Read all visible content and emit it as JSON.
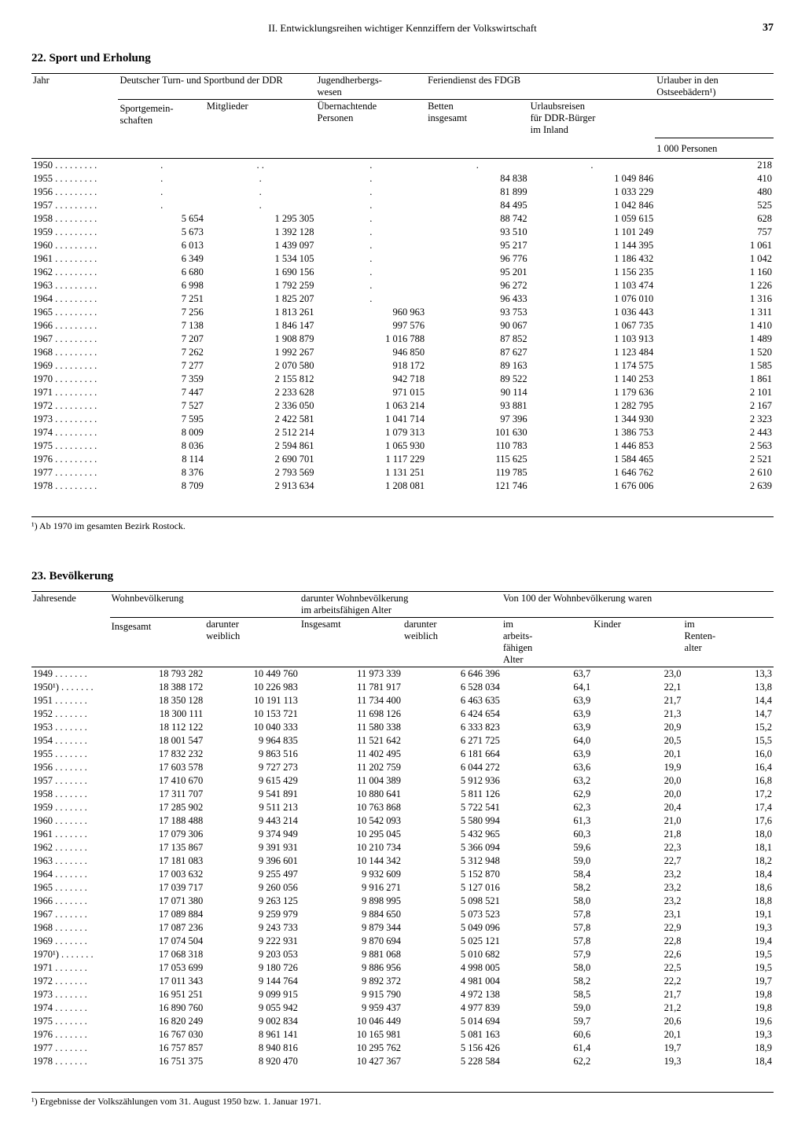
{
  "page": {
    "chapter": "II. Entwicklungsreihen wichtiger Kennziffern der Volkswirtschaft",
    "number": "37"
  },
  "table22": {
    "title": "22. Sport und Erholung",
    "columns": {
      "year": "Jahr",
      "dtsb": "Deutscher Turn- und Sportbund der DDR",
      "dtsb_sub1": "Sportgemein-\nschaften",
      "dtsb_sub2": "Mitglieder",
      "jh": "Jugendherbergs-\nwesen",
      "jh_sub": "Übernachtende\nPersonen",
      "fdgb": "Feriendienst des FDGB",
      "fdgb_sub1": "Betten\ninsgesamt",
      "fdgb_sub2": "Urlaubsreisen\nfür DDR-Bürger\nim Inland",
      "ostsee": "Urlauber in den\nOstseebädern¹)",
      "unit": "1 000 Personen"
    },
    "rows": [
      {
        "year": "1950",
        "sg": ".",
        "mg": ". .",
        "up": ".",
        "bet": ".",
        "url": ".",
        "ost": "218"
      },
      {
        "year": "1955",
        "sg": ".",
        "mg": ".",
        "up": ".",
        "bet": "84 838",
        "url": "1 049 846",
        "ost": "410"
      },
      {
        "year": "1956",
        "sg": ".",
        "mg": ".",
        "up": ".",
        "bet": "81 899",
        "url": "1 033 229",
        "ost": "480"
      },
      {
        "year": "1957",
        "sg": ".",
        "mg": ".",
        "up": ".",
        "bet": "84 495",
        "url": "1 042 846",
        "ost": "525"
      },
      {
        "year": "1958",
        "sg": "5 654",
        "mg": "1 295 305",
        "up": ".",
        "bet": "88 742",
        "url": "1 059 615",
        "ost": "628"
      },
      {
        "year": "1959",
        "sg": "5 673",
        "mg": "1 392 128",
        "up": ".",
        "bet": "93 510",
        "url": "1 101 249",
        "ost": "757"
      },
      {
        "year": "1960",
        "sg": "6 013",
        "mg": "1 439 097",
        "up": ".",
        "bet": "95 217",
        "url": "1 144 395",
        "ost": "1 061"
      },
      {
        "year": "1961",
        "sg": "6 349",
        "mg": "1 534 105",
        "up": ".",
        "bet": "96 776",
        "url": "1 186 432",
        "ost": "1 042"
      },
      {
        "year": "1962",
        "sg": "6 680",
        "mg": "1 690 156",
        "up": ".",
        "bet": "95 201",
        "url": "1 156 235",
        "ost": "1 160"
      },
      {
        "year": "1963",
        "sg": "6 998",
        "mg": "1 792 259",
        "up": ".",
        "bet": "96 272",
        "url": "1 103 474",
        "ost": "1 226"
      },
      {
        "year": "1964",
        "sg": "7 251",
        "mg": "1 825 207",
        "up": ".",
        "bet": "96 433",
        "url": "1 076 010",
        "ost": "1 316"
      },
      {
        "year": "1965",
        "sg": "7 256",
        "mg": "1 813 261",
        "up": "960 963",
        "bet": "93 753",
        "url": "1 036 443",
        "ost": "1 311"
      },
      {
        "year": "1966",
        "sg": "7 138",
        "mg": "1 846 147",
        "up": "997 576",
        "bet": "90 067",
        "url": "1 067 735",
        "ost": "1 410"
      },
      {
        "year": "1967",
        "sg": "7 207",
        "mg": "1 908 879",
        "up": "1 016 788",
        "bet": "87 852",
        "url": "1 103 913",
        "ost": "1 489"
      },
      {
        "year": "1968",
        "sg": "7 262",
        "mg": "1 992 267",
        "up": "946 850",
        "bet": "87 627",
        "url": "1 123 484",
        "ost": "1 520"
      },
      {
        "year": "1969",
        "sg": "7 277",
        "mg": "2 070 580",
        "up": "918 172",
        "bet": "89 163",
        "url": "1 174 575",
        "ost": "1 585"
      },
      {
        "year": "1970",
        "sg": "7 359",
        "mg": "2 155 812",
        "up": "942 718",
        "bet": "89 522",
        "url": "1 140 253",
        "ost": "1 861"
      },
      {
        "year": "1971",
        "sg": "7 447",
        "mg": "2 233 628",
        "up": "971 015",
        "bet": "90 114",
        "url": "1 179 636",
        "ost": "2 101"
      },
      {
        "year": "1972",
        "sg": "7 527",
        "mg": "2 336 050",
        "up": "1 063 214",
        "bet": "93 881",
        "url": "1 282 795",
        "ost": "2 167"
      },
      {
        "year": "1973",
        "sg": "7 595",
        "mg": "2 422 581",
        "up": "1 041 714",
        "bet": "97 396",
        "url": "1 344 930",
        "ost": "2 323"
      },
      {
        "year": "1974",
        "sg": "8 009",
        "mg": "2 512 214",
        "up": "1 079 313",
        "bet": "101 630",
        "url": "1 386 753",
        "ost": "2 443"
      },
      {
        "year": "1975",
        "sg": "8 036",
        "mg": "2 594 861",
        "up": "1 065 930",
        "bet": "110 783",
        "url": "1 446 853",
        "ost": "2 563"
      },
      {
        "year": "1976",
        "sg": "8 114",
        "mg": "2 690 701",
        "up": "1 117 229",
        "bet": "115 625",
        "url": "1 584 465",
        "ost": "2 521"
      },
      {
        "year": "1977",
        "sg": "8 376",
        "mg": "2 793 569",
        "up": "1 131 251",
        "bet": "119 785",
        "url": "1 646 762",
        "ost": "2 610"
      },
      {
        "year": "1978",
        "sg": "8 709",
        "mg": "2 913 634",
        "up": "1 208 081",
        "bet": "121 746",
        "url": "1 676 006",
        "ost": "2 639"
      }
    ],
    "footnote": "¹) Ab 1970 im gesamten Bezirk Rostock."
  },
  "table23": {
    "title": "23. Bevölkerung",
    "columns": {
      "year": "Jahresende",
      "wb": "Wohnbevölkerung",
      "wb_sub1": "Insgesamt",
      "wb_sub2": "darunter\nweiblich",
      "af": "darunter Wohnbevölkerung\nim arbeitsfähigen Alter",
      "af_sub1": "Insgesamt",
      "af_sub2": "darunter\nweiblich",
      "pct": "Von 100 der Wohnbevölkerung waren",
      "pct_sub1": "im\narbeits-\nfähigen\nAlter",
      "pct_sub2": "Kinder",
      "pct_sub3": "im\nRenten-\nalter"
    },
    "rows": [
      {
        "year": "1949",
        "tot": "18 793 282",
        "w": "10 449 760",
        "aft": "11 973 339",
        "afw": "6 646 396",
        "p1": "63,7",
        "p2": "23,0",
        "p3": "13,3"
      },
      {
        "year": "1950¹)",
        "tot": "18 388 172",
        "w": "10 226 983",
        "aft": "11 781 917",
        "afw": "6 528 034",
        "p1": "64,1",
        "p2": "22,1",
        "p3": "13,8"
      },
      {
        "year": "1951",
        "tot": "18 350 128",
        "w": "10 191 113",
        "aft": "11 734 400",
        "afw": "6 463 635",
        "p1": "63,9",
        "p2": "21,7",
        "p3": "14,4"
      },
      {
        "year": "1952",
        "tot": "18 300 111",
        "w": "10 153 721",
        "aft": "11 698 126",
        "afw": "6 424 654",
        "p1": "63,9",
        "p2": "21,3",
        "p3": "14,7"
      },
      {
        "year": "1953",
        "tot": "18 112 122",
        "w": "10 040 333",
        "aft": "11 580 338",
        "afw": "6 333 823",
        "p1": "63,9",
        "p2": "20,9",
        "p3": "15,2"
      },
      {
        "year": "1954",
        "tot": "18 001 547",
        "w": "9 964 835",
        "aft": "11 521 642",
        "afw": "6 271 725",
        "p1": "64,0",
        "p2": "20,5",
        "p3": "15,5"
      },
      {
        "year": "1955",
        "tot": "17 832 232",
        "w": "9 863 516",
        "aft": "11 402 495",
        "afw": "6 181 664",
        "p1": "63,9",
        "p2": "20,1",
        "p3": "16,0"
      },
      {
        "year": "1956",
        "tot": "17 603 578",
        "w": "9 727 273",
        "aft": "11 202 759",
        "afw": "6 044 272",
        "p1": "63,6",
        "p2": "19,9",
        "p3": "16,4"
      },
      {
        "year": "1957",
        "tot": "17 410 670",
        "w": "9 615 429",
        "aft": "11 004 389",
        "afw": "5 912 936",
        "p1": "63,2",
        "p2": "20,0",
        "p3": "16,8"
      },
      {
        "year": "1958",
        "tot": "17 311 707",
        "w": "9 541 891",
        "aft": "10 880 641",
        "afw": "5 811 126",
        "p1": "62,9",
        "p2": "20,0",
        "p3": "17,2"
      },
      {
        "year": "1959",
        "tot": "17 285 902",
        "w": "9 511 213",
        "aft": "10 763 868",
        "afw": "5 722 541",
        "p1": "62,3",
        "p2": "20,4",
        "p3": "17,4"
      },
      {
        "year": "1960",
        "tot": "17 188 488",
        "w": "9 443 214",
        "aft": "10 542 093",
        "afw": "5 580 994",
        "p1": "61,3",
        "p2": "21,0",
        "p3": "17,6"
      },
      {
        "year": "1961",
        "tot": "17 079 306",
        "w": "9 374 949",
        "aft": "10 295 045",
        "afw": "5 432 965",
        "p1": "60,3",
        "p2": "21,8",
        "p3": "18,0"
      },
      {
        "year": "1962",
        "tot": "17 135 867",
        "w": "9 391 931",
        "aft": "10 210 734",
        "afw": "5 366 094",
        "p1": "59,6",
        "p2": "22,3",
        "p3": "18,1"
      },
      {
        "year": "1963",
        "tot": "17 181 083",
        "w": "9 396 601",
        "aft": "10 144 342",
        "afw": "5 312 948",
        "p1": "59,0",
        "p2": "22,7",
        "p3": "18,2"
      },
      {
        "year": "1964",
        "tot": "17 003 632",
        "w": "9 255 497",
        "aft": "9 932 609",
        "afw": "5 152 870",
        "p1": "58,4",
        "p2": "23,2",
        "p3": "18,4"
      },
      {
        "year": "1965",
        "tot": "17 039 717",
        "w": "9 260 056",
        "aft": "9 916 271",
        "afw": "5 127 016",
        "p1": "58,2",
        "p2": "23,2",
        "p3": "18,6"
      },
      {
        "year": "1966",
        "tot": "17 071 380",
        "w": "9 263 125",
        "aft": "9 898 995",
        "afw": "5 098 521",
        "p1": "58,0",
        "p2": "23,2",
        "p3": "18,8"
      },
      {
        "year": "1967",
        "tot": "17 089 884",
        "w": "9 259 979",
        "aft": "9 884 650",
        "afw": "5 073 523",
        "p1": "57,8",
        "p2": "23,1",
        "p3": "19,1"
      },
      {
        "year": "1968",
        "tot": "17 087 236",
        "w": "9 243 733",
        "aft": "9 879 344",
        "afw": "5 049 096",
        "p1": "57,8",
        "p2": "22,9",
        "p3": "19,3"
      },
      {
        "year": "1969",
        "tot": "17 074 504",
        "w": "9 222 931",
        "aft": "9 870 694",
        "afw": "5 025 121",
        "p1": "57,8",
        "p2": "22,8",
        "p3": "19,4"
      },
      {
        "year": "1970¹)",
        "tot": "17 068 318",
        "w": "9 203 053",
        "aft": "9 881 068",
        "afw": "5 010 682",
        "p1": "57,9",
        "p2": "22,6",
        "p3": "19,5"
      },
      {
        "year": "1971",
        "tot": "17 053 699",
        "w": "9 180 726",
        "aft": "9 886 956",
        "afw": "4 998 005",
        "p1": "58,0",
        "p2": "22,5",
        "p3": "19,5"
      },
      {
        "year": "1972",
        "tot": "17 011 343",
        "w": "9 144 764",
        "aft": "9 892 372",
        "afw": "4 981 004",
        "p1": "58,2",
        "p2": "22,2",
        "p3": "19,7"
      },
      {
        "year": "1973",
        "tot": "16 951 251",
        "w": "9 099 915",
        "aft": "9 915 790",
        "afw": "4 972 138",
        "p1": "58,5",
        "p2": "21,7",
        "p3": "19,8"
      },
      {
        "year": "1974",
        "tot": "16 890 760",
        "w": "9 055 942",
        "aft": "9 959 437",
        "afw": "4 977 839",
        "p1": "59,0",
        "p2": "21,2",
        "p3": "19,8"
      },
      {
        "year": "1975",
        "tot": "16 820 249",
        "w": "9 002 834",
        "aft": "10 046 449",
        "afw": "5 014 694",
        "p1": "59,7",
        "p2": "20,6",
        "p3": "19,6"
      },
      {
        "year": "1976",
        "tot": "16 767 030",
        "w": "8 961 141",
        "aft": "10 165 981",
        "afw": "5 081 163",
        "p1": "60,6",
        "p2": "20,1",
        "p3": "19,3"
      },
      {
        "year": "1977",
        "tot": "16 757 857",
        "w": "8 940 816",
        "aft": "10 295 762",
        "afw": "5 156 426",
        "p1": "61,4",
        "p2": "19,7",
        "p3": "18,9"
      },
      {
        "year": "1978",
        "tot": "16 751 375",
        "w": "8 920 470",
        "aft": "10 427 367",
        "afw": "5 228 584",
        "p1": "62,2",
        "p2": "19,3",
        "p3": "18,4"
      }
    ],
    "footnote": "¹) Ergebnisse der Volkszählungen vom 31. August 1950 bzw. 1. Januar 1971."
  }
}
